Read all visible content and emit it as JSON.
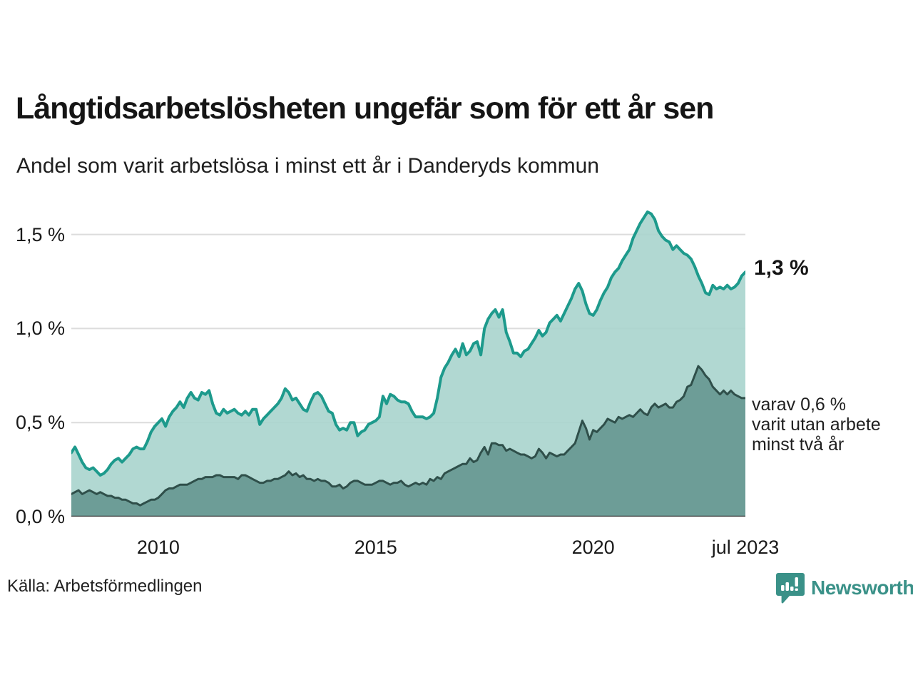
{
  "header": {
    "title": "Långtidsarbetslösheten ungefär som för ett år sen",
    "subtitle": "Andel som varit arbetslösa i minst ett år i Danderyds kommun"
  },
  "chart_data": {
    "type": "area",
    "title": "Andel som varit arbetslösa i minst ett år i Danderyds kommun",
    "x_start": "jan 2008",
    "x_end": "jul 2023",
    "x_resolution": "monthly",
    "unit": "%",
    "ylim": [
      0,
      1.67
    ],
    "grid": true,
    "grid_color": "#dcdcdc",
    "axis_color": "#3a3a3a",
    "y_ticks": [
      {
        "value": 0.0,
        "label": "0,0 %"
      },
      {
        "value": 0.5,
        "label": "0,5 %"
      },
      {
        "value": 1.0,
        "label": "1,0 %"
      },
      {
        "value": 1.5,
        "label": "1,5 %"
      }
    ],
    "x_ticks": [
      {
        "label": "2010",
        "month_index": 24
      },
      {
        "label": "2015",
        "month_index": 84
      },
      {
        "label": "2020",
        "month_index": 144
      },
      {
        "label": "jul 2023",
        "month_index": 186
      }
    ],
    "series": [
      {
        "name": "Andel som varit arbetslösa minst ett år",
        "line_color": "#1d9a8c",
        "fill_color": "#a9d4cd",
        "fill_opacity": 0.9,
        "line_width": 4,
        "last_value_label": "1,3 %",
        "values": [
          0.34,
          0.37,
          0.33,
          0.29,
          0.26,
          0.25,
          0.26,
          0.24,
          0.22,
          0.23,
          0.25,
          0.28,
          0.3,
          0.31,
          0.29,
          0.31,
          0.33,
          0.36,
          0.37,
          0.36,
          0.36,
          0.4,
          0.45,
          0.48,
          0.5,
          0.52,
          0.48,
          0.53,
          0.56,
          0.58,
          0.61,
          0.58,
          0.63,
          0.66,
          0.63,
          0.62,
          0.66,
          0.65,
          0.67,
          0.6,
          0.55,
          0.54,
          0.57,
          0.55,
          0.56,
          0.57,
          0.55,
          0.54,
          0.56,
          0.54,
          0.57,
          0.57,
          0.49,
          0.52,
          0.54,
          0.56,
          0.58,
          0.6,
          0.63,
          0.68,
          0.66,
          0.62,
          0.63,
          0.6,
          0.57,
          0.56,
          0.61,
          0.65,
          0.66,
          0.64,
          0.6,
          0.56,
          0.55,
          0.49,
          0.46,
          0.47,
          0.46,
          0.5,
          0.5,
          0.43,
          0.45,
          0.46,
          0.49,
          0.5,
          0.51,
          0.53,
          0.64,
          0.6,
          0.65,
          0.64,
          0.62,
          0.61,
          0.61,
          0.6,
          0.56,
          0.53,
          0.53,
          0.53,
          0.52,
          0.53,
          0.55,
          0.63,
          0.74,
          0.79,
          0.82,
          0.86,
          0.89,
          0.85,
          0.92,
          0.86,
          0.88,
          0.92,
          0.93,
          0.86,
          1.0,
          1.05,
          1.08,
          1.1,
          1.06,
          1.1,
          0.98,
          0.93,
          0.87,
          0.87,
          0.85,
          0.88,
          0.89,
          0.92,
          0.95,
          0.99,
          0.96,
          0.98,
          1.03,
          1.05,
          1.07,
          1.04,
          1.08,
          1.12,
          1.16,
          1.21,
          1.24,
          1.2,
          1.13,
          1.08,
          1.07,
          1.1,
          1.15,
          1.19,
          1.22,
          1.27,
          1.3,
          1.32,
          1.36,
          1.39,
          1.42,
          1.48,
          1.52,
          1.56,
          1.59,
          1.62,
          1.61,
          1.58,
          1.52,
          1.49,
          1.47,
          1.46,
          1.42,
          1.44,
          1.42,
          1.4,
          1.39,
          1.37,
          1.33,
          1.28,
          1.24,
          1.19,
          1.18,
          1.23,
          1.21,
          1.22,
          1.21,
          1.23,
          1.21,
          1.22,
          1.24,
          1.28,
          1.3
        ]
      },
      {
        "name": "varav utan arbete minst två år",
        "line_color": "#2f4f4a",
        "fill_color": "#699era",
        "fill_opacity": 0.95,
        "line_width": 3,
        "last_value_label": "0,6 %",
        "values": [
          0.12,
          0.13,
          0.14,
          0.12,
          0.13,
          0.14,
          0.13,
          0.12,
          0.13,
          0.12,
          0.11,
          0.11,
          0.1,
          0.1,
          0.09,
          0.09,
          0.08,
          0.07,
          0.07,
          0.06,
          0.07,
          0.08,
          0.09,
          0.09,
          0.1,
          0.12,
          0.14,
          0.15,
          0.15,
          0.16,
          0.17,
          0.17,
          0.17,
          0.18,
          0.19,
          0.2,
          0.2,
          0.21,
          0.21,
          0.21,
          0.22,
          0.22,
          0.21,
          0.21,
          0.21,
          0.21,
          0.2,
          0.22,
          0.22,
          0.21,
          0.2,
          0.19,
          0.18,
          0.18,
          0.19,
          0.19,
          0.2,
          0.2,
          0.21,
          0.22,
          0.24,
          0.22,
          0.23,
          0.21,
          0.22,
          0.2,
          0.2,
          0.19,
          0.2,
          0.19,
          0.19,
          0.18,
          0.16,
          0.16,
          0.17,
          0.15,
          0.16,
          0.18,
          0.19,
          0.19,
          0.18,
          0.17,
          0.17,
          0.17,
          0.18,
          0.19,
          0.19,
          0.18,
          0.17,
          0.18,
          0.18,
          0.19,
          0.17,
          0.16,
          0.17,
          0.18,
          0.17,
          0.18,
          0.17,
          0.2,
          0.19,
          0.21,
          0.2,
          0.23,
          0.24,
          0.25,
          0.26,
          0.27,
          0.28,
          0.28,
          0.31,
          0.29,
          0.3,
          0.34,
          0.37,
          0.33,
          0.39,
          0.39,
          0.38,
          0.38,
          0.35,
          0.36,
          0.35,
          0.34,
          0.33,
          0.33,
          0.32,
          0.31,
          0.32,
          0.36,
          0.34,
          0.31,
          0.34,
          0.33,
          0.32,
          0.33,
          0.33,
          0.35,
          0.37,
          0.39,
          0.45,
          0.51,
          0.47,
          0.41,
          0.46,
          0.45,
          0.47,
          0.49,
          0.52,
          0.51,
          0.5,
          0.53,
          0.52,
          0.53,
          0.54,
          0.53,
          0.55,
          0.57,
          0.55,
          0.54,
          0.58,
          0.6,
          0.58,
          0.59,
          0.6,
          0.58,
          0.58,
          0.61,
          0.62,
          0.64,
          0.69,
          0.7,
          0.75,
          0.8,
          0.78,
          0.75,
          0.73,
          0.69,
          0.67,
          0.65,
          0.67,
          0.65,
          0.67,
          0.65,
          0.64,
          0.63,
          0.63
        ]
      }
    ]
  },
  "annotations": {
    "latest_total": "1,3 %",
    "two_year_lines": [
      "varav 0,6 %",
      "varit utan arbete",
      "minst två år"
    ]
  },
  "footer": {
    "source": "Källa: Arbetsförmedlingen",
    "brand": "Newsworthy",
    "brand_color": "#3a9188"
  }
}
